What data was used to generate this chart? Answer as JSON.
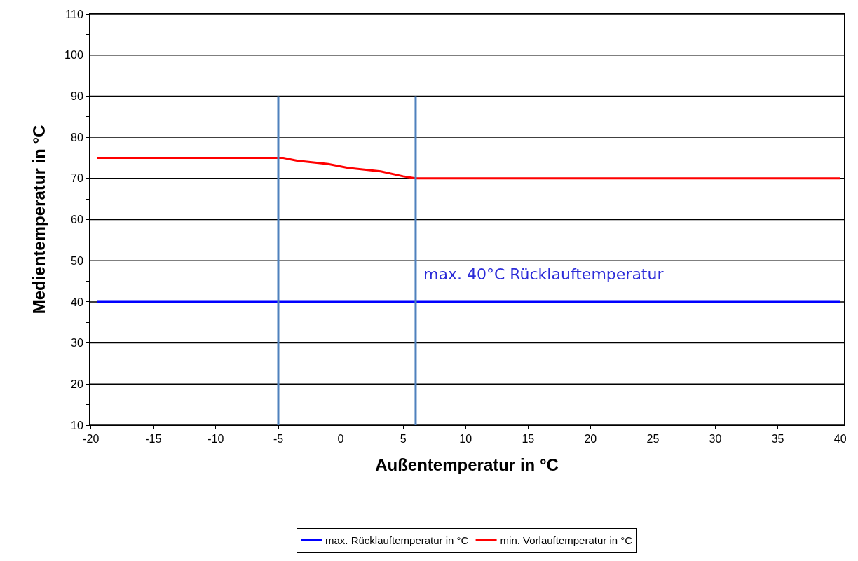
{
  "chart_data": {
    "type": "line",
    "xlabel": "Außentemperatur in °C",
    "ylabel": "Medientemperatur in °C",
    "xlim": [
      -20.1,
      40.3
    ],
    "xticks": [
      -20,
      -15,
      -10,
      -5,
      0,
      5,
      10,
      15,
      20,
      25,
      30,
      35,
      40
    ],
    "ylim": [
      10,
      110
    ],
    "yticks": [
      10,
      {
        "value": 15,
        "label": null
      },
      20,
      {
        "value": 25,
        "label": null
      },
      30,
      {
        "value": 35,
        "label": null
      },
      40,
      {
        "value": 45,
        "label": null
      },
      50,
      {
        "value": 55,
        "label": null
      },
      60,
      {
        "value": 65,
        "label": null
      },
      70,
      {
        "value": 75,
        "label": null
      },
      80,
      {
        "value": 85,
        "label": null
      },
      90,
      {
        "value": 95,
        "label": null
      },
      100,
      {
        "value": 105,
        "label": null
      },
      110
    ],
    "grid": "y",
    "legend": "bottom",
    "marker": "none",
    "line_style": "solid",
    "series": [
      {
        "name": "max. Rücklauftemperatur in °C",
        "color": "#0000ff",
        "x": [
          -19.5,
          40
        ],
        "values": [
          40,
          40
        ]
      },
      {
        "name": "min. Vorlauftemperatur in °C",
        "color": "#ff0000",
        "x": [
          -19.5,
          -4.6,
          -3.5,
          -1,
          0.5,
          3.2,
          5,
          6,
          40
        ],
        "values": [
          75,
          75,
          74.3,
          73.5,
          72.6,
          71.7,
          70.5,
          70,
          70
        ]
      },
      {
        "color": "#4f81bd",
        "x": [
          -5,
          -5
        ],
        "values": [
          10,
          90
        ]
      },
      {
        "color": "#4f81bd",
        "x": [
          6,
          6
        ],
        "values": [
          10,
          90
        ]
      }
    ],
    "annotations": [
      "max. 40°C Rücklauftemperatur"
    ]
  }
}
